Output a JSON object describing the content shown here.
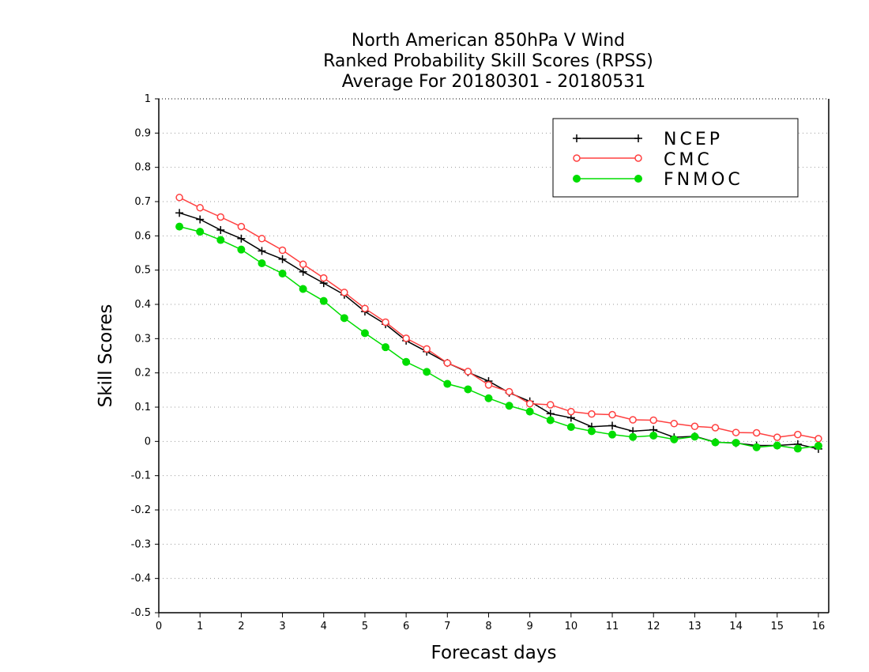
{
  "chart_data": {
    "type": "line",
    "title": [
      "North American 850hPa V Wind",
      "Ranked Probability Skill Scores (RPSS)",
      "Average For 20180301 - 20180531"
    ],
    "xlabel": "Forecast days",
    "ylabel": "Skill Scores",
    "xlim": [
      0,
      16.25
    ],
    "ylim": [
      -0.5,
      1
    ],
    "xticks": [
      0,
      1,
      2,
      3,
      4,
      5,
      6,
      7,
      8,
      9,
      10,
      11,
      12,
      13,
      14,
      15,
      16
    ],
    "yticks": [
      1,
      0.9,
      0.8,
      0.7,
      0.6,
      0.5,
      0.4,
      0.3,
      0.2,
      0.1,
      0,
      -0.1,
      -0.2,
      -0.3,
      -0.4,
      -0.5
    ],
    "grid": true,
    "legend_position": "top-right",
    "x": [
      0.5,
      1,
      1.5,
      2,
      2.5,
      3,
      3.5,
      4,
      4.5,
      5,
      5.5,
      6,
      6.5,
      7,
      7.5,
      8,
      8.5,
      9,
      9.5,
      10,
      10.5,
      11,
      11.5,
      12,
      12.5,
      13,
      13.5,
      14,
      14.5,
      15,
      15.5,
      16
    ],
    "series": [
      {
        "name": "NCEP",
        "color": "#000000",
        "marker": "plus",
        "values": [
          0.667,
          0.648,
          0.617,
          0.592,
          0.556,
          0.532,
          0.495,
          0.462,
          0.428,
          0.379,
          0.342,
          0.294,
          0.262,
          0.229,
          0.202,
          0.176,
          0.142,
          0.117,
          0.081,
          0.069,
          0.043,
          0.046,
          0.03,
          0.034,
          0.012,
          0.015,
          -0.002,
          -0.005,
          -0.012,
          -0.012,
          -0.008,
          -0.022
        ]
      },
      {
        "name": "CMC",
        "color": "#ff4040",
        "marker": "open-circle",
        "values": [
          0.712,
          0.682,
          0.655,
          0.627,
          0.592,
          0.558,
          0.517,
          0.477,
          0.435,
          0.388,
          0.348,
          0.301,
          0.27,
          0.229,
          0.204,
          0.165,
          0.145,
          0.11,
          0.107,
          0.087,
          0.08,
          0.078,
          0.063,
          0.062,
          0.052,
          0.044,
          0.04,
          0.026,
          0.025,
          0.012,
          0.02,
          0.008
        ]
      },
      {
        "name": "FNMOC",
        "color": "#00dd00",
        "marker": "filled-circle",
        "values": [
          0.627,
          0.612,
          0.588,
          0.56,
          0.52,
          0.49,
          0.445,
          0.41,
          0.36,
          0.316,
          0.275,
          0.232,
          0.203,
          0.168,
          0.152,
          0.126,
          0.104,
          0.087,
          0.062,
          0.042,
          0.03,
          0.02,
          0.013,
          0.017,
          0.006,
          0.014,
          -0.003,
          -0.004,
          -0.017,
          -0.012,
          -0.021,
          -0.013
        ]
      }
    ]
  }
}
